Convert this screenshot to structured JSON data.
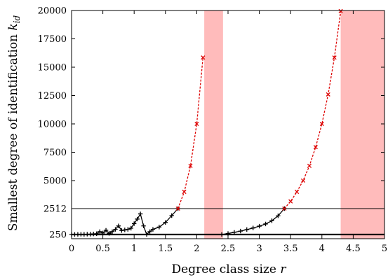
{
  "chart_data": {
    "type": "line",
    "xlabel": "Degree class size",
    "xlabel_var": "r",
    "ylabel": "Smallest degree of identification",
    "ylabel_var": "k",
    "ylabel_sub": "id",
    "xlim": [
      0,
      5
    ],
    "ylim": [
      0,
      20000
    ],
    "x_ticks": [
      0,
      0.5,
      1,
      1.5,
      2,
      2.5,
      3,
      3.5,
      4,
      4.5,
      5
    ],
    "x_tick_labels": [
      "0",
      "0.5",
      "1",
      "1.5",
      "2",
      "2.5",
      "3",
      "3.5",
      "4",
      "4.5",
      "5"
    ],
    "y_ticks": [
      250,
      2512,
      5000,
      7500,
      10000,
      12500,
      15000,
      17500,
      20000
    ],
    "y_tick_labels": [
      "250",
      "2512",
      "5000",
      "7500",
      "10000",
      "12500",
      "15000",
      "17500",
      "20000"
    ],
    "y_axis_scale": "piecewise-linear (250 and 2512 placed for readability)",
    "y_display_map": [
      [
        0,
        0
      ],
      [
        250,
        250
      ],
      [
        2512,
        2512
      ],
      [
        5000,
        5000
      ],
      [
        20000,
        20000
      ]
    ],
    "horizontal_lines": [
      {
        "y": 250,
        "color": "#000000",
        "weight": "thick"
      },
      {
        "y": 2512,
        "color": "#000000",
        "weight": "thin"
      }
    ],
    "shaded_regions": [
      {
        "x_start": 2.12,
        "x_end": 2.42,
        "color": "#ffbbbb"
      },
      {
        "x_start": 4.3,
        "x_end": 5.0,
        "color": "#ffbbbb"
      }
    ],
    "series": [
      {
        "color": "#000000",
        "marker": "plus",
        "line": "solid",
        "points": [
          [
            0.0,
            250
          ],
          [
            0.05,
            255
          ],
          [
            0.1,
            260
          ],
          [
            0.15,
            270
          ],
          [
            0.2,
            265
          ],
          [
            0.25,
            275
          ],
          [
            0.3,
            280
          ],
          [
            0.35,
            300
          ],
          [
            0.4,
            320
          ],
          [
            0.45,
            500
          ],
          [
            0.5,
            380
          ],
          [
            0.55,
            620
          ],
          [
            0.6,
            350
          ],
          [
            0.65,
            500
          ],
          [
            0.7,
            700
          ],
          [
            0.75,
            1000
          ],
          [
            0.8,
            600
          ],
          [
            0.85,
            650
          ],
          [
            0.9,
            700
          ],
          [
            0.95,
            800
          ],
          [
            1.0,
            1200
          ],
          [
            1.05,
            1600
          ],
          [
            1.1,
            2050
          ],
          [
            1.15,
            1000
          ],
          [
            1.2,
            250
          ],
          [
            1.25,
            500
          ],
          [
            1.3,
            700
          ],
          [
            1.4,
            900
          ],
          [
            1.5,
            1300
          ],
          [
            1.6,
            1900
          ],
          [
            1.7,
            2512
          ]
        ]
      },
      {
        "color": "#dd0000",
        "marker": "x",
        "line": "dashed",
        "points": [
          [
            1.7,
            2512
          ],
          [
            1.8,
            4000
          ],
          [
            1.9,
            6300
          ],
          [
            2.0,
            10000
          ],
          [
            2.1,
            15850
          ]
        ]
      },
      {
        "color": "#000000",
        "marker": "plus",
        "line": "solid",
        "points": [
          [
            2.4,
            250
          ],
          [
            2.5,
            340
          ],
          [
            2.6,
            440
          ],
          [
            2.7,
            550
          ],
          [
            2.8,
            680
          ],
          [
            2.9,
            820
          ],
          [
            3.0,
            980
          ],
          [
            3.1,
            1170
          ],
          [
            3.2,
            1450
          ],
          [
            3.3,
            1880
          ],
          [
            3.4,
            2512
          ]
        ]
      },
      {
        "color": "#dd0000",
        "marker": "x",
        "line": "dashed",
        "points": [
          [
            3.4,
            2512
          ],
          [
            3.5,
            3150
          ],
          [
            3.6,
            4000
          ],
          [
            3.7,
            5000
          ],
          [
            3.8,
            6300
          ],
          [
            3.9,
            7950
          ],
          [
            4.0,
            10000
          ],
          [
            4.1,
            12600
          ],
          [
            4.2,
            15850
          ],
          [
            4.3,
            19950
          ]
        ]
      }
    ]
  }
}
